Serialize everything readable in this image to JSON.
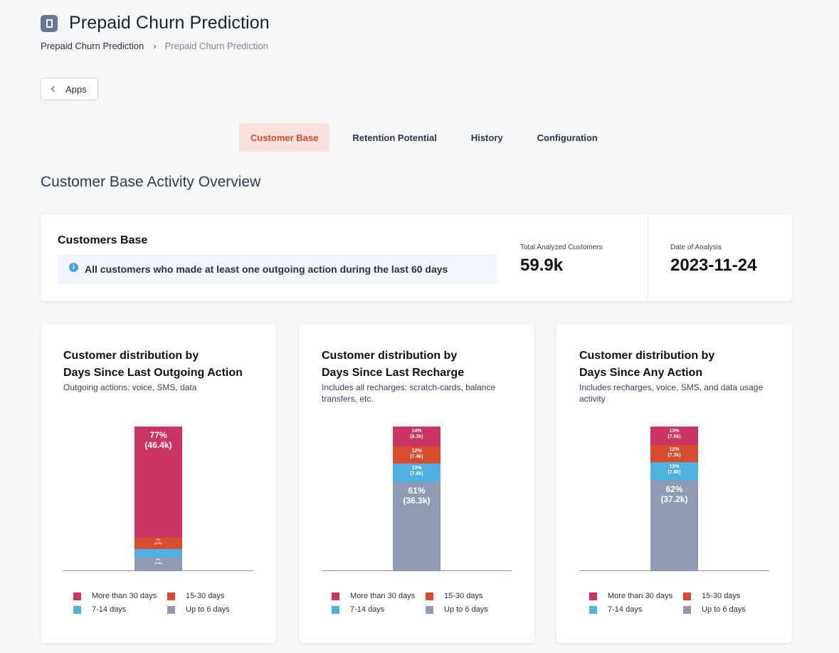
{
  "app": {
    "title": "Prepaid Churn Prediction"
  },
  "breadcrumb": [
    "Prepaid Churn Prediction",
    "Prepaid Churn Prediction"
  ],
  "apps_button": {
    "label": "Apps"
  },
  "tabs": [
    {
      "label": "Customer Base",
      "active": true
    },
    {
      "label": "Retention Potential",
      "active": false
    },
    {
      "label": "History",
      "active": false
    },
    {
      "label": "Configuration",
      "active": false
    }
  ],
  "section_title": "Customer Base Activity Overview",
  "summary": {
    "title": "Customers Base",
    "info": "All customers who made at least one outgoing action during the last 60 days",
    "total_label": "Total Analyzed Customers",
    "total_value": "59.9k",
    "date_label": "Date of Analysis",
    "date_value": "2023-11-24"
  },
  "legend_labels": [
    "More than 30 days",
    "15-30 days",
    "7-14 days",
    "Up to 6 days"
  ],
  "colors": {
    "more_than_30": "#cc3461",
    "d15_30": "#d74b2f",
    "d7_14": "#4fb1df",
    "up_to_6": "#8f9bb3"
  },
  "chart_data": [
    {
      "type": "bar",
      "stacked": true,
      "title_line1": "Customer distribution by",
      "title_line2": "Days Since Last Outgoing Action",
      "subtitle": "Outgoing actions: voice, SMS, data",
      "segments": [
        {
          "name": "Up to 6 days",
          "percent": 9,
          "label_pct": "9%",
          "label_count": "(5.4k)",
          "count": 5.4
        },
        {
          "name": "7-14 days",
          "percent": 6,
          "label_pct": "-",
          "label_count": "",
          "count": 3.4
        },
        {
          "name": "15-30 days",
          "percent": 8,
          "label_pct": "8%",
          "label_count": "(4.7k)",
          "count": 4.7
        },
        {
          "name": "More than 30 days",
          "percent": 77,
          "label_pct": "77%",
          "label_count": "(46.4k)",
          "count": 46.4
        }
      ]
    },
    {
      "type": "bar",
      "stacked": true,
      "title_line1": "Customer distribution by",
      "title_line2": "Days Since Last Recharge",
      "subtitle": "Includes all recharges: scratch-cards, balance transfers, etc.",
      "segments": [
        {
          "name": "Up to 6 days",
          "percent": 61,
          "label_pct": "61%",
          "label_count": "(36.3k)",
          "count": 36.3
        },
        {
          "name": "7-14 days",
          "percent": 13,
          "label_pct": "13%",
          "label_count": "(7.8k)",
          "count": 7.8
        },
        {
          "name": "15-30 days",
          "percent": 12,
          "label_pct": "12%",
          "label_count": "(7.4k)",
          "count": 7.4
        },
        {
          "name": "More than 30 days",
          "percent": 14,
          "label_pct": "14%",
          "label_count": "(8.3k)",
          "count": 8.3
        }
      ]
    },
    {
      "type": "bar",
      "stacked": true,
      "title_line1": "Customer distribution by",
      "title_line2": "Days Since Any Action",
      "subtitle": "Includes recharges, voice, SMS, and data usage activity",
      "segments": [
        {
          "name": "Up to 6 days",
          "percent": 62,
          "label_pct": "62%",
          "label_count": "(37.2k)",
          "count": 37.2
        },
        {
          "name": "7-14 days",
          "percent": 13,
          "label_pct": "13%",
          "label_count": "(7.8k)",
          "count": 7.8
        },
        {
          "name": "15-30 days",
          "percent": 12,
          "label_pct": "12%",
          "label_count": "(7.3k)",
          "count": 7.3
        },
        {
          "name": "More than 30 days",
          "percent": 13,
          "label_pct": "13%",
          "label_count": "(7.6k)",
          "count": 7.6
        }
      ]
    }
  ]
}
